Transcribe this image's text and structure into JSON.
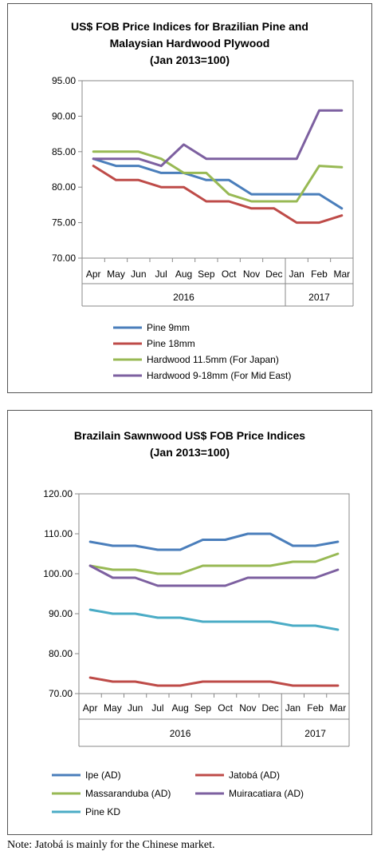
{
  "chart_data": [
    {
      "type": "line",
      "title_lines": [
        "US$ FOB Price Indices for Brazilian Pine and",
        "Malaysian Hardwood Plywood",
        "(Jan 2013=100)"
      ],
      "categories": [
        "Apr",
        "May",
        "Jun",
        "Jul",
        "Aug",
        "Sep",
        "Oct",
        "Nov",
        "Dec",
        "Jan",
        "Feb",
        "Mar"
      ],
      "year_groups": [
        {
          "label": "2016",
          "start": 0,
          "end": 8
        },
        {
          "label": "2017",
          "start": 9,
          "end": 11
        }
      ],
      "ylim": [
        70,
        95
      ],
      "yticks": [
        70,
        75,
        80,
        85,
        90,
        95
      ],
      "ytick_labels": [
        "70.00",
        "75.00",
        "80.00",
        "85.00",
        "90.00",
        "95.00"
      ],
      "legend_position": "bottom",
      "series": [
        {
          "name": "Pine 9mm",
          "color": "#4a7ebb",
          "values": [
            84,
            83,
            83,
            82,
            82,
            81,
            81,
            79,
            79,
            79,
            79,
            77
          ]
        },
        {
          "name": "Pine 18mm",
          "color": "#be4b48",
          "values": [
            83,
            81,
            81,
            80,
            80,
            78,
            78,
            77,
            77,
            75,
            75,
            76
          ]
        },
        {
          "name": "Hardwood 11.5mm (For Japan)",
          "color": "#98b954",
          "values": [
            85,
            85,
            85,
            84,
            82,
            82,
            79,
            78,
            78,
            78,
            83,
            82.8
          ]
        },
        {
          "name": "Hardwood 9-18mm (For Mid East)",
          "color": "#7d60a0",
          "values": [
            84,
            84,
            84,
            83,
            86,
            84,
            84,
            84,
            84,
            84,
            90.8,
            90.8
          ]
        }
      ]
    },
    {
      "type": "line",
      "title_lines": [
        "Brazilain Sawnwood US$ FOB Price Indices",
        "(Jan 2013=100)"
      ],
      "categories": [
        "Apr",
        "May",
        "Jun",
        "Jul",
        "Aug",
        "Sep",
        "Oct",
        "Nov",
        "Dec",
        "Jan",
        "Feb",
        "Mar"
      ],
      "year_groups": [
        {
          "label": "2016",
          "start": 0,
          "end": 8
        },
        {
          "label": "2017",
          "start": 9,
          "end": 11
        }
      ],
      "ylim": [
        70,
        120
      ],
      "yticks": [
        70,
        80,
        90,
        100,
        110,
        120
      ],
      "ytick_labels": [
        "70.00",
        "80.00",
        "90.00",
        "100.00",
        "110.00",
        "120.00"
      ],
      "legend_position": "bottom",
      "series": [
        {
          "name": "Ipe (AD)",
          "color": "#4a7ebb",
          "values": [
            108,
            107,
            107,
            106,
            106,
            108.5,
            108.5,
            110,
            110,
            107,
            107,
            108
          ]
        },
        {
          "name": "Jatobá (AD)",
          "color": "#be4b48",
          "values": [
            74,
            73,
            73,
            72,
            72,
            73,
            73,
            73,
            73,
            72,
            72,
            72
          ]
        },
        {
          "name": "Massaranduba (AD)",
          "color": "#98b954",
          "values": [
            102,
            101,
            101,
            100,
            100,
            102,
            102,
            102,
            102,
            103,
            103,
            105
          ]
        },
        {
          "name": "Muiracatiara (AD)",
          "color": "#7d60a0",
          "values": [
            102,
            99,
            99,
            97,
            97,
            97,
            97,
            99,
            99,
            99,
            99,
            101
          ]
        },
        {
          "name": "Pine KD",
          "color": "#4bacc6",
          "values": [
            91,
            90,
            90,
            89,
            89,
            88,
            88,
            88,
            88,
            87,
            87,
            86
          ]
        }
      ]
    }
  ],
  "note": "Note: Jatobá is mainly for the Chinese market."
}
